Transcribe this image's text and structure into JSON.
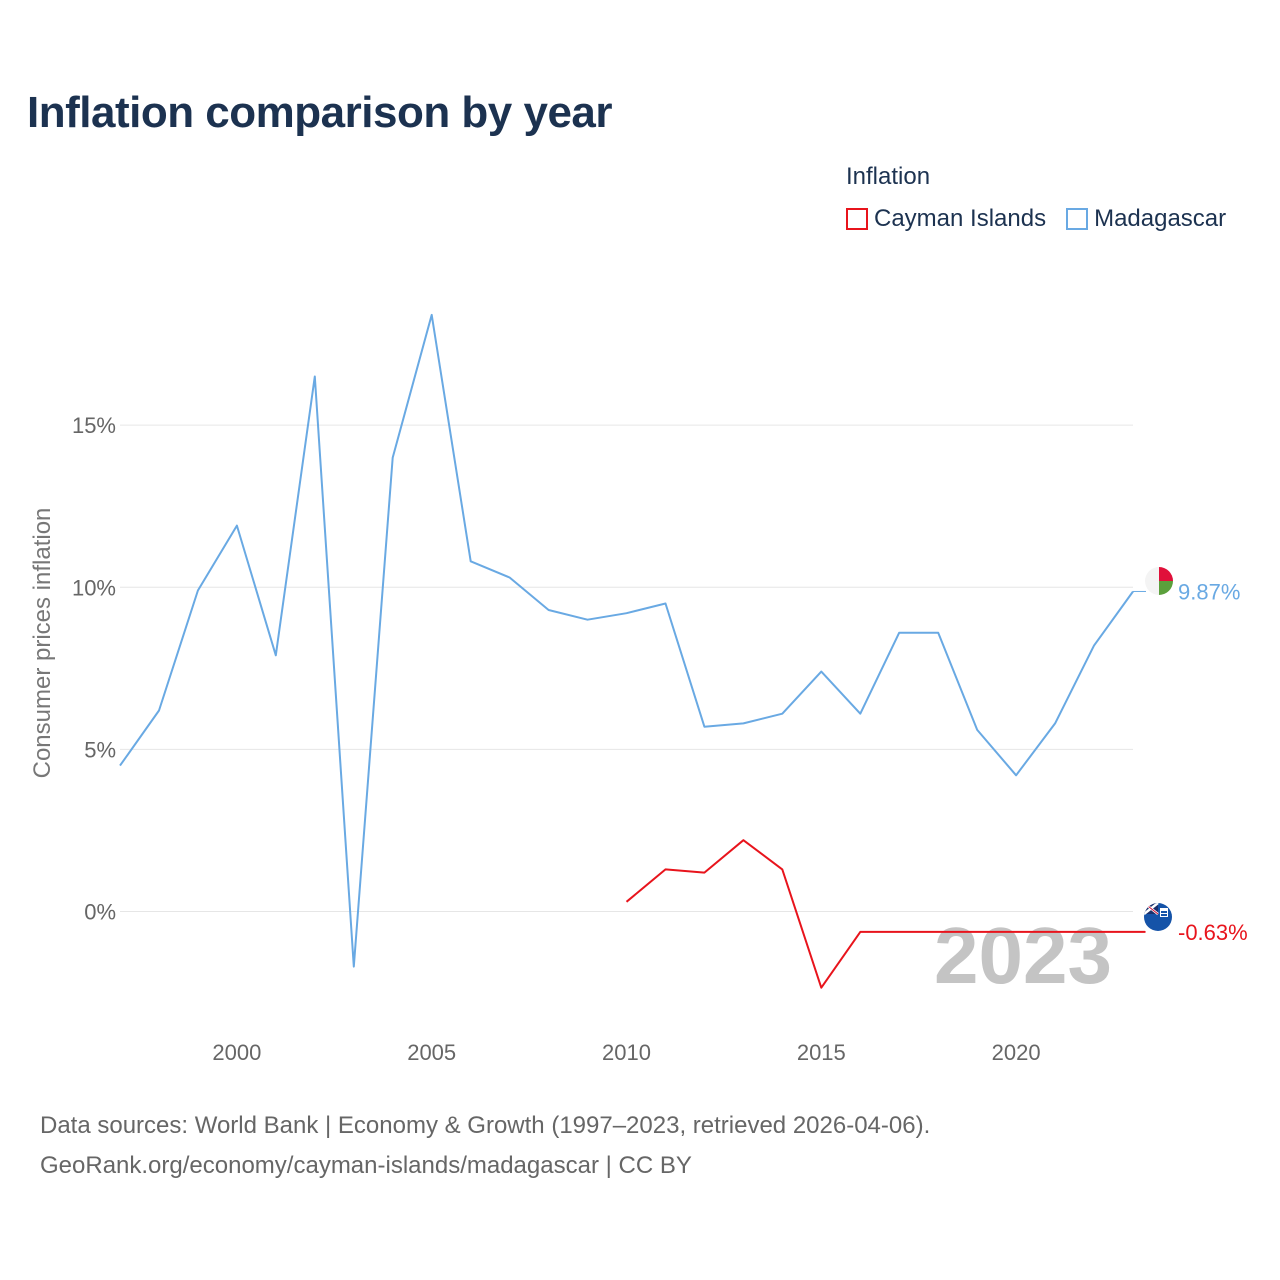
{
  "title": "Inflation comparison by year",
  "legend": {
    "title": "Inflation",
    "items": [
      {
        "label": "Cayman Islands",
        "color": "#e8141c"
      },
      {
        "label": "Madagascar",
        "color": "#69a9e3"
      }
    ]
  },
  "sources": {
    "line1": "Data sources: World Bank | Economy & Growth (1997–2023, retrieved 2026-04-06).",
    "line2": "GeoRank.org/economy/cayman-islands/madagascar | CC BY"
  },
  "chart_data": {
    "type": "line",
    "title": "Inflation comparison by year",
    "ylabel": "Consumer prices inflation",
    "xlabel": "",
    "xlim": [
      1997,
      2023
    ],
    "ylim": [
      -3.5,
      20
    ],
    "x_ticks": [
      2000,
      2005,
      2010,
      2015,
      2020
    ],
    "x_tick_labels": [
      "2000",
      "2005",
      "2010",
      "2015",
      "2020"
    ],
    "y_ticks": [
      0,
      5,
      10,
      15
    ],
    "y_tick_labels": [
      "0%",
      "5%",
      "10%",
      "15%"
    ],
    "watermark_year": "2023",
    "series": [
      {
        "name": "Madagascar",
        "color": "#69a9e3",
        "end_label": "9.87%",
        "end_value": 9.87,
        "x": [
          1997,
          1998,
          1999,
          2000,
          2001,
          2002,
          2003,
          2004,
          2005,
          2006,
          2007,
          2008,
          2009,
          2010,
          2011,
          2012,
          2013,
          2014,
          2015,
          2016,
          2017,
          2018,
          2019,
          2020,
          2021,
          2022,
          2023
        ],
        "values": [
          4.5,
          6.2,
          9.9,
          11.9,
          7.9,
          16.5,
          -1.7,
          14.0,
          18.4,
          10.8,
          10.3,
          9.3,
          9.0,
          9.2,
          9.5,
          5.7,
          5.8,
          6.1,
          7.4,
          6.1,
          8.6,
          8.6,
          5.6,
          4.2,
          5.8,
          8.2,
          9.87
        ]
      },
      {
        "name": "Cayman Islands",
        "color": "#e8141c",
        "end_label": "-0.63%",
        "end_value": -0.63,
        "x": [
          2010,
          2011,
          2012,
          2013,
          2014,
          2015,
          2016,
          2023
        ],
        "values": [
          0.3,
          1.3,
          1.2,
          2.2,
          1.3,
          -2.35,
          -0.63,
          -0.63
        ]
      }
    ]
  }
}
